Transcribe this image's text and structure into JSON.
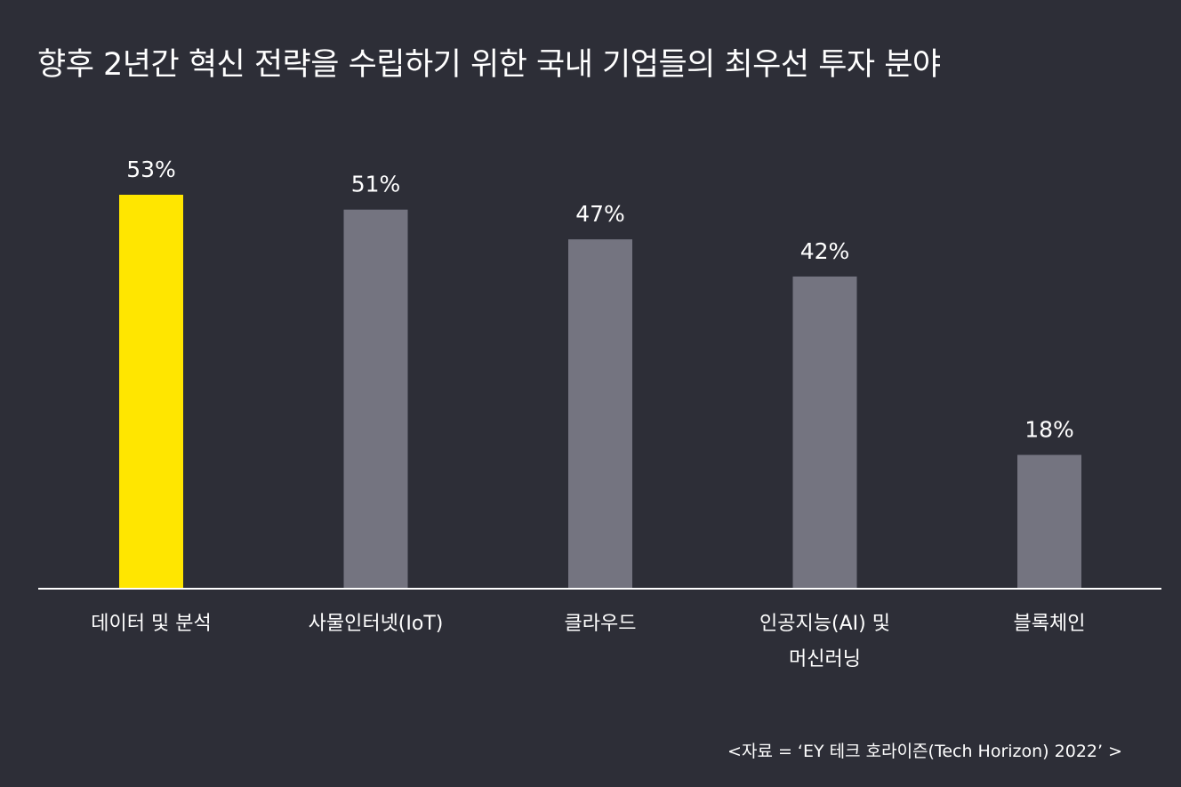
{
  "chart_data": {
    "type": "bar",
    "title": "향후 2년간 혁신 전략을 수립하기 위한 국내 기업들의 최우선 투자 분야",
    "categories": [
      [
        "데이터 및 분석"
      ],
      [
        "사물인터넷(IoT)"
      ],
      [
        "클라우드"
      ],
      [
        "인공지능(AI) 및",
        "머신러닝"
      ],
      [
        "블록체인"
      ]
    ],
    "values": [
      53,
      51,
      47,
      42,
      18
    ],
    "value_labels": [
      "53%",
      "51%",
      "47%",
      "42%",
      "18%"
    ],
    "unit": "%",
    "ylim": [
      0,
      53
    ],
    "grid": false,
    "legend": "none",
    "colors": {
      "highlight": "#ffe600",
      "bar": "#747480",
      "baseline": "#ffffff",
      "background": "#2d2e37",
      "text": "#ffffff"
    },
    "highlight_index": 0
  },
  "source": "<자료 = ‘EY 테크 호라이즌(Tech Horizon) 2022’ >"
}
